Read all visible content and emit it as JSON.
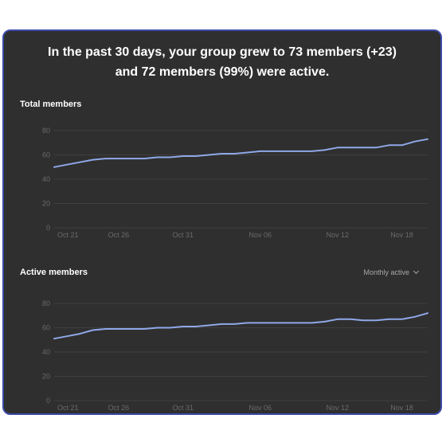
{
  "headline": {
    "line1": "In the past 30 days, your group grew to 73 members (+23)",
    "line2": "and 72 members (99%) were active."
  },
  "total_section": {
    "title": "Total members"
  },
  "active_section": {
    "title": "Active members",
    "metric_select": {
      "selected": "Monthly active",
      "icon": "chevron-down-icon"
    }
  },
  "colors": {
    "background": "#2f2f2f",
    "border": "#3c4aa6",
    "line": "#8fa8e8",
    "grid": "#3f3f3f",
    "tick_text": "#6a6a6a"
  },
  "chart_data": [
    {
      "type": "line",
      "title": "Total members",
      "x_tick_labels": [
        "Oct 21",
        "Oct 26",
        "Oct 31",
        "Nov 06",
        "Nov 12",
        "Nov 18"
      ],
      "y_ticks": [
        0,
        20,
        40,
        60,
        80
      ],
      "ylim": [
        0,
        80
      ],
      "grid": true,
      "series": [
        {
          "values": [
            50,
            52,
            54,
            56,
            57,
            57,
            57,
            57,
            58,
            58,
            59,
            59,
            60,
            61,
            61,
            62,
            63,
            63,
            63,
            63,
            63,
            64,
            66,
            66,
            66,
            66,
            68,
            68,
            71,
            73
          ]
        }
      ]
    },
    {
      "type": "line",
      "title": "Active members",
      "x_tick_labels": [
        "Oct 21",
        "Oct 26",
        "Oct 31",
        "Nov 06",
        "Nov 12",
        "Nov 18"
      ],
      "y_ticks": [
        0,
        20,
        40,
        60,
        80
      ],
      "ylim": [
        0,
        80
      ],
      "grid": true,
      "series": [
        {
          "values": [
            51,
            53,
            55,
            58,
            59,
            59,
            59,
            59,
            60,
            60,
            61,
            61,
            62,
            63,
            63,
            64,
            64,
            64,
            64,
            64,
            64,
            65,
            67,
            67,
            66,
            66,
            67,
            67,
            69,
            72
          ]
        }
      ]
    }
  ]
}
